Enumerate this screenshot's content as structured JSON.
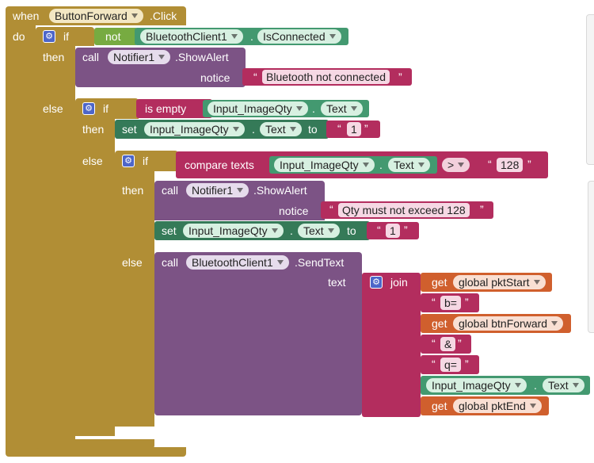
{
  "event": {
    "when": "when",
    "component": "ButtonForward",
    "event_name": ".Click",
    "do": "do"
  },
  "if1": {
    "if_label": "if",
    "not_label": "not",
    "component": "BluetoothClient1",
    "property": "IsConnected",
    "then_label": "then",
    "call_label": "call",
    "notifier": "Notifier1",
    "method": ".ShowAlert",
    "notice_label": "notice",
    "notice_text": "Bluetooth not connected",
    "else_label": "else"
  },
  "if2": {
    "if_label": "if",
    "is_empty": "is empty",
    "component": "Input_ImageQty",
    "property": "Text",
    "then_label": "then",
    "set_label": "set",
    "set_component": "Input_ImageQty",
    "set_property": "Text",
    "to_label": "to",
    "set_value": "1",
    "else_label": "else"
  },
  "if3": {
    "if_label": "if",
    "compare_label": "compare texts",
    "component": "Input_ImageQty",
    "property": "Text",
    "operator": ">",
    "compare_value": "128",
    "then_label": "then",
    "call_label": "call",
    "notifier": "Notifier1",
    "method": ".ShowAlert",
    "notice_label": "notice",
    "notice_text": "Qty must not exceed 128",
    "set_label": "set",
    "set_component": "Input_ImageQty",
    "set_property": "Text",
    "to_label": "to",
    "set_value": "1",
    "else_label": "else"
  },
  "send": {
    "call_label": "call",
    "component": "BluetoothClient1",
    "method": ".SendText",
    "text_label": "text",
    "join_label": "join",
    "get_label": "get",
    "var_pkt_start": "global pktStart",
    "str_b": "b=",
    "var_btn_forward": "global btnForward",
    "str_amp": "&",
    "str_q": "q=",
    "component2": "Input_ImageQty",
    "property2": "Text",
    "var_pkt_end": "global pktEnd"
  },
  "quote": "“",
  "quote_close": "”",
  "icons": {
    "mutator": "gear-icon",
    "dropdown": "triangle-down-icon"
  },
  "colors": {
    "control": "#b18e35",
    "text": "#b32d5e",
    "component": "#439970",
    "procedure": "#7c5385",
    "variable": "#d05f2d",
    "logic": "#77ab41"
  }
}
